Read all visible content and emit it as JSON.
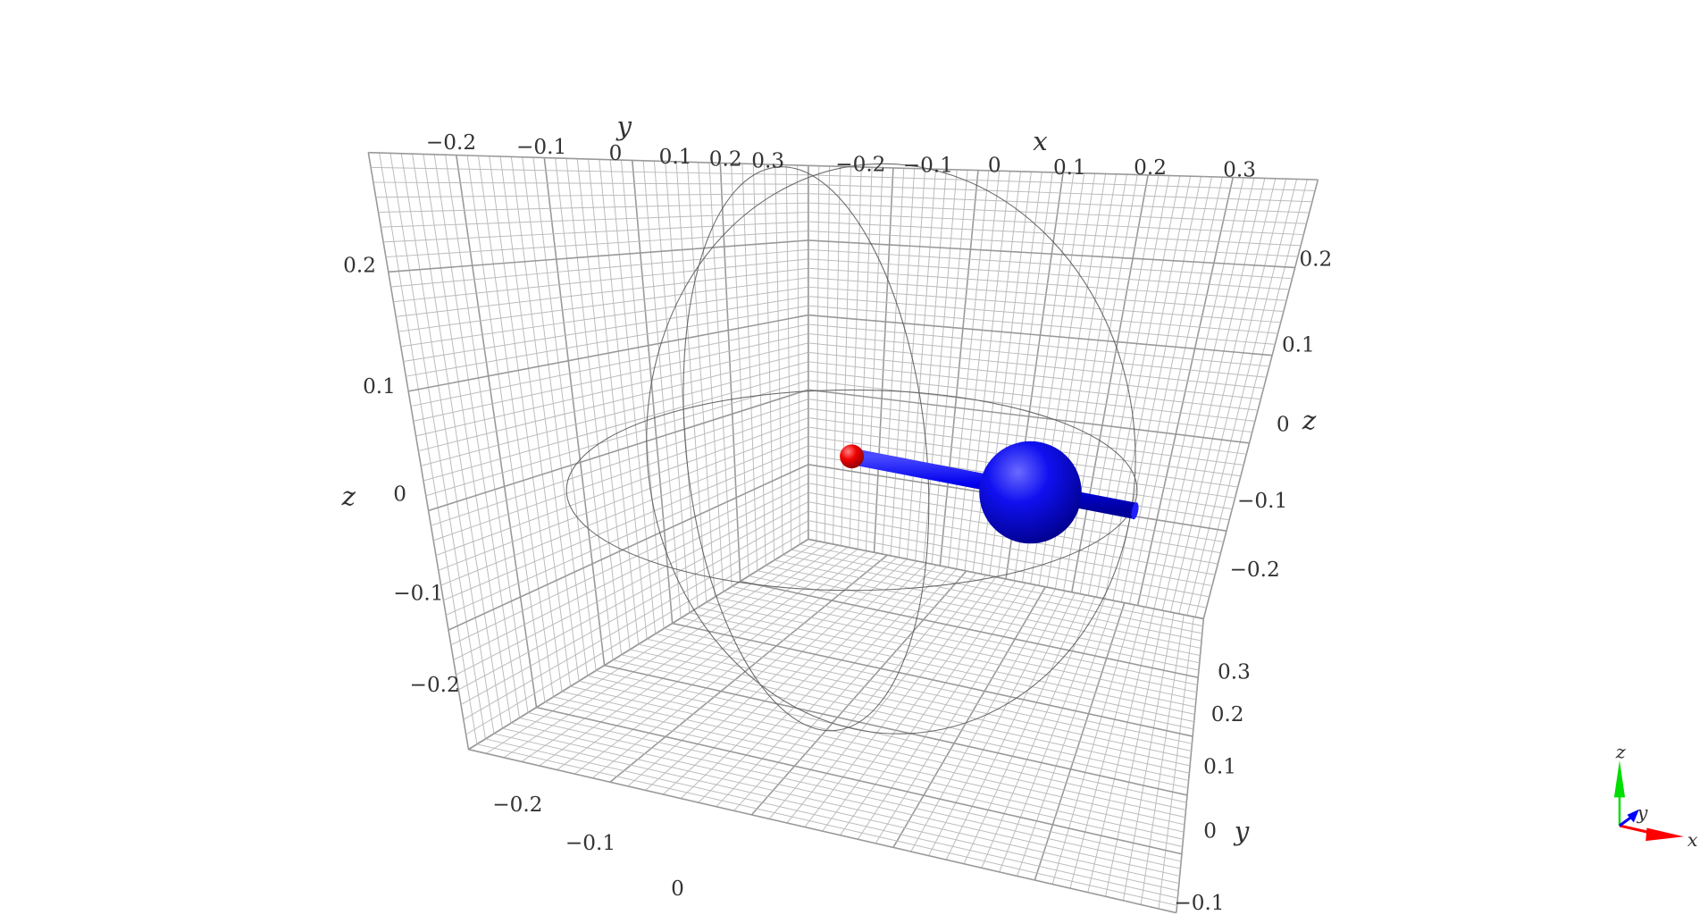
{
  "scene": {
    "axis_labels": {
      "x_top": "x",
      "y_top": "y",
      "z_left": "z",
      "z_right": "z",
      "y_bottom": "y"
    },
    "ticks": {
      "y_top": [
        "−0.2",
        "−0.1",
        "0",
        "0.1",
        "0.2",
        "0.3"
      ],
      "x_top": [
        "−0.2",
        "−0.1",
        "0",
        "0.1",
        "0.2",
        "0.3"
      ],
      "z_left": [
        "0.2",
        "0.1",
        "0",
        "−0.1",
        "−0.2"
      ],
      "z_right": [
        "0.2",
        "0.1",
        "0",
        "−0.1",
        "−0.2"
      ],
      "x_bottom": [
        "−0.2",
        "−0.1",
        "0"
      ],
      "y_bottom": [
        "0.3",
        "0.2",
        "0.1",
        "0",
        "−0.1"
      ]
    },
    "objects": {
      "large_sphere_color": "#0000ff",
      "small_sphere_color": "#ff0000",
      "rod_color": "#0000ff",
      "wireframe_color": "#555555",
      "grid_color": "#bbbbbb"
    },
    "triad": {
      "x": "x",
      "y": "y",
      "z": "z",
      "x_color": "#ff0000",
      "y_color": "#0000ff",
      "z_color": "#00dd00"
    }
  }
}
